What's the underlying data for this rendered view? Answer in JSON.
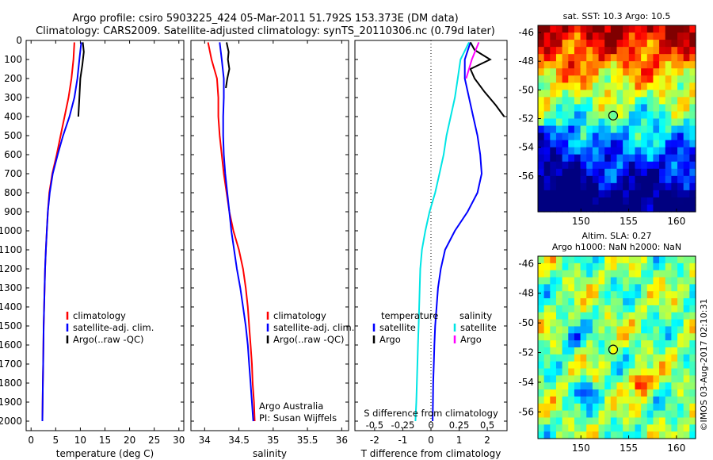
{
  "title": {
    "line1": "Argo profile: csiro 5903225_424 05-Mar-2011 51.792S 153.373E (DM data)",
    "line2": "Climatology: CARS2009. Satellite-adjusted climatology: synTS_20110306.nc (0.79d later)"
  },
  "watermark": "©IMOS 03-Aug-2017 02:10:31",
  "colors": {
    "climatology": "#ff0000",
    "satellite": "#0000ff",
    "argo": "#000000",
    "s_satellite": "#00e5e5",
    "s_argo": "#ff00ff"
  },
  "chart_data": [
    {
      "id": "temperature",
      "type": "line",
      "xlabel": "temperature (deg C)",
      "xlim": [
        -1,
        31
      ],
      "ylim": [
        0,
        2050
      ],
      "y_inverted": true,
      "xticks": [
        0,
        5,
        10,
        15,
        20,
        25,
        30
      ],
      "yticks": [
        0,
        100,
        200,
        300,
        400,
        500,
        600,
        700,
        800,
        900,
        1000,
        1100,
        1200,
        1300,
        1400,
        1500,
        1600,
        1700,
        1800,
        1900,
        2000
      ],
      "legend": {
        "placement": "lower-center",
        "entries": [
          {
            "label": "climatology",
            "color": "#ff0000"
          },
          {
            "label": "satellite-adj. clim.",
            "color": "#0000ff"
          },
          {
            "label": "Argo(..raw -QC)",
            "color": "#000000"
          }
        ]
      },
      "series": [
        {
          "name": "climatology",
          "color": "#ff0000",
          "x": [
            8.8,
            8.6,
            8.2,
            7.6,
            6.8,
            6.0,
            5.2,
            4.3,
            3.7,
            3.4,
            3.2,
            3.0,
            2.85,
            2.75,
            2.65,
            2.55,
            2.5,
            2.45,
            2.4,
            2.35,
            2.3
          ],
          "y": [
            10,
            100,
            200,
            300,
            400,
            500,
            600,
            700,
            800,
            900,
            1000,
            1100,
            1200,
            1300,
            1400,
            1500,
            1600,
            1700,
            1800,
            1900,
            2000
          ]
        },
        {
          "name": "satellite-adj. clim.",
          "color": "#0000ff",
          "x": [
            10.2,
            9.8,
            9.4,
            8.8,
            7.8,
            6.5,
            5.4,
            4.4,
            3.8,
            3.4,
            3.2,
            3.0,
            2.85,
            2.75,
            2.65,
            2.55,
            2.5,
            2.45,
            2.4,
            2.35,
            2.3
          ],
          "y": [
            10,
            100,
            200,
            300,
            400,
            500,
            600,
            700,
            800,
            900,
            1000,
            1100,
            1200,
            1300,
            1400,
            1500,
            1600,
            1700,
            1800,
            1900,
            2000
          ]
        },
        {
          "name": "Argo(..raw -QC)",
          "color": "#000000",
          "x": [
            10.5,
            10.7,
            10.4,
            10.0,
            9.8,
            9.6
          ],
          "y": [
            10,
            60,
            130,
            200,
            300,
            400
          ]
        }
      ]
    },
    {
      "id": "salinity",
      "type": "line",
      "xlabel": "salinity",
      "xlim": [
        33.8,
        36.1
      ],
      "ylim": [
        0,
        2050
      ],
      "y_inverted": true,
      "xticks": [
        34,
        34.5,
        35,
        35.5,
        36
      ],
      "legend": {
        "placement": "lower-center",
        "entries": [
          {
            "label": "climatology",
            "color": "#ff0000"
          },
          {
            "label": "satellite-adj. clim.",
            "color": "#0000ff"
          },
          {
            "label": "Argo(..raw -QC)",
            "color": "#000000"
          }
        ]
      },
      "annotations": [
        "Argo Australia",
        "PI: Susan Wijffels"
      ],
      "series": [
        {
          "name": "climatology",
          "color": "#ff0000",
          "x": [
            34.05,
            34.1,
            34.18,
            34.2,
            34.2,
            34.22,
            34.25,
            34.28,
            34.32,
            34.36,
            34.42,
            34.5,
            34.56,
            34.6,
            34.63,
            34.65,
            34.67,
            34.69,
            34.7,
            34.72,
            34.73
          ],
          "y": [
            10,
            100,
            200,
            300,
            400,
            500,
            600,
            700,
            800,
            900,
            1000,
            1100,
            1200,
            1300,
            1400,
            1500,
            1600,
            1700,
            1800,
            1900,
            2000
          ]
        },
        {
          "name": "satellite-adj. clim.",
          "color": "#0000ff",
          "x": [
            34.22,
            34.25,
            34.28,
            34.28,
            34.27,
            34.27,
            34.28,
            34.3,
            34.33,
            34.36,
            34.39,
            34.43,
            34.47,
            34.52,
            34.56,
            34.6,
            34.63,
            34.65,
            34.67,
            34.69,
            34.71
          ],
          "y": [
            10,
            100,
            200,
            300,
            400,
            500,
            600,
            700,
            800,
            900,
            1000,
            1100,
            1200,
            1300,
            1400,
            1500,
            1600,
            1700,
            1800,
            1900,
            2000
          ]
        },
        {
          "name": "Argo(..raw -QC)",
          "color": "#000000",
          "x": [
            34.32,
            34.35,
            34.34,
            34.36,
            34.33,
            34.31
          ],
          "y": [
            10,
            60,
            100,
            150,
            200,
            250
          ]
        }
      ]
    },
    {
      "id": "difference",
      "type": "line",
      "xlabel": "T difference from climatology",
      "xlabel_top": "S difference from climatology",
      "xlim": [
        -2.7,
        2.7
      ],
      "ylim": [
        0,
        2050
      ],
      "y_inverted": true,
      "xticks": [
        -2,
        -1,
        0,
        1,
        2
      ],
      "xticks_s_labels": [
        "-0.5",
        "-0.25",
        "0",
        "0.25",
        "0.5"
      ],
      "legend_t": {
        "title": "temperature",
        "entries": [
          {
            "label": "satellite",
            "color": "#0000ff"
          },
          {
            "label": "Argo",
            "color": "#000000"
          }
        ]
      },
      "legend_s": {
        "title": "salinity",
        "entries": [
          {
            "label": "satellite",
            "color": "#00e5e5"
          },
          {
            "label": "Argo",
            "color": "#ff00ff"
          }
        ]
      },
      "series": [
        {
          "name": "T satellite",
          "color": "#0000ff",
          "x": [
            1.4,
            1.2,
            1.2,
            1.35,
            1.5,
            1.65,
            1.75,
            1.8,
            1.65,
            1.3,
            0.85,
            0.5,
            0.35,
            0.25,
            0.2,
            0.15,
            0.12,
            0.1,
            0.08,
            0.07,
            0.06
          ],
          "y": [
            10,
            100,
            200,
            300,
            400,
            500,
            600,
            700,
            800,
            900,
            1000,
            1100,
            1200,
            1300,
            1400,
            1500,
            1600,
            1700,
            1800,
            1900,
            2000
          ]
        },
        {
          "name": "T Argo",
          "color": "#000000",
          "x": [
            1.4,
            1.55,
            2.1,
            1.4,
            1.55,
            1.9,
            2.3,
            2.6
          ],
          "y": [
            10,
            50,
            100,
            150,
            200,
            270,
            340,
            400
          ]
        },
        {
          "name": "S satellite",
          "color": "#00e5e5",
          "x": [
            1.35,
            1.05,
            0.95,
            0.85,
            0.7,
            0.55,
            0.45,
            0.3,
            0.15,
            -0.05,
            -0.2,
            -0.32,
            -0.38,
            -0.4,
            -0.42,
            -0.44,
            -0.46,
            -0.48,
            -0.5,
            -0.52,
            -0.55
          ],
          "y": [
            10,
            100,
            200,
            300,
            400,
            500,
            600,
            700,
            800,
            900,
            1000,
            1100,
            1200,
            1300,
            1400,
            1500,
            1600,
            1700,
            1800,
            1900,
            2000
          ]
        },
        {
          "name": "S Argo",
          "color": "#ff00ff",
          "x": [
            1.7,
            1.45,
            1.25
          ],
          "y": [
            10,
            100,
            200
          ]
        }
      ]
    },
    {
      "id": "sst-map",
      "type": "heatmap",
      "title": "sat. SST: 10.3  Argo: 10.5",
      "xlim": [
        145.5,
        162
      ],
      "ylim": [
        -58.5,
        -45.5
      ],
      "xticks": [
        150,
        155,
        160
      ],
      "yticks": [
        -46,
        -48,
        -50,
        -52,
        -54,
        -56
      ],
      "marker": {
        "lon": 153.373,
        "lat": -51.792
      }
    },
    {
      "id": "sla-map",
      "type": "heatmap",
      "title_line1": "Altim. SLA: 0.27",
      "title_line2": "Argo h1000: NaN h2000: NaN",
      "xlim": [
        145.5,
        162
      ],
      "ylim": [
        -57.8,
        -45.5
      ],
      "xticks": [
        150,
        155,
        160
      ],
      "yticks": [
        -46,
        -48,
        -50,
        -52,
        -54,
        -56
      ],
      "marker": {
        "lon": 153.373,
        "lat": -51.792
      }
    }
  ]
}
